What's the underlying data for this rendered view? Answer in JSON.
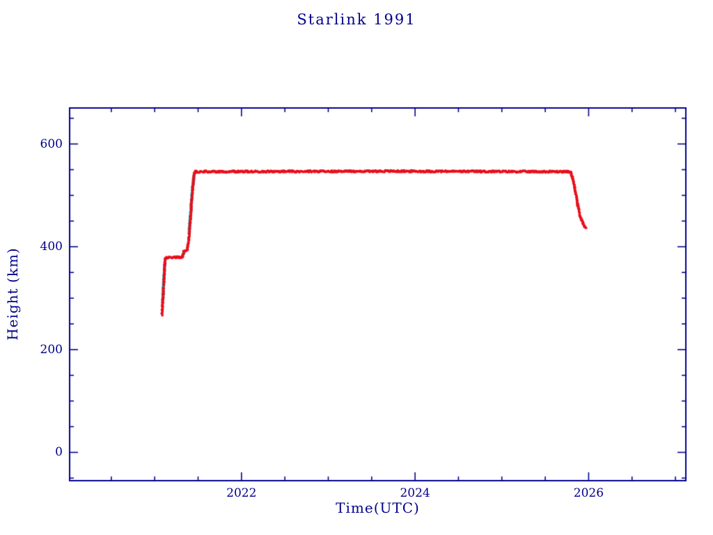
{
  "colors": {
    "axis": "#00008b",
    "text": "#00008b",
    "background": "#ffffff",
    "primary_series": "#e8101c",
    "secondary_series": "#00dde6"
  },
  "chart_data": {
    "type": "scatter",
    "title": "Starlink 1991",
    "xlabel": "Time(UTC)",
    "ylabel": "Height (km)",
    "xlim": [
      2020.02,
      2027.12
    ],
    "ylim": [
      -55,
      670
    ],
    "grid": false,
    "legend": "none",
    "x_major_ticks": [
      {
        "value": 2022,
        "label": "2022"
      },
      {
        "value": 2024,
        "label": "2024"
      },
      {
        "value": 2026,
        "label": "2026"
      }
    ],
    "x_minor_step": 0.5,
    "y_major_ticks": [
      {
        "value": 0,
        "label": "0"
      },
      {
        "value": 200,
        "label": "200"
      },
      {
        "value": 400,
        "label": "400"
      },
      {
        "value": 600,
        "label": "600"
      }
    ],
    "y_minor_step": 50,
    "series": [
      {
        "name": "height-secondary-cyan",
        "color": "#00dde6",
        "dot_radius": 2.0,
        "jitter_km": 2.5,
        "segments": [
          [
            [
              2021.092,
              295
            ],
            [
              2021.105,
              335
            ],
            [
              2021.118,
              368
            ]
          ],
          [
            [
              2021.328,
              383
            ],
            [
              2021.342,
              390
            ]
          ],
          [
            [
              2021.398,
              428
            ],
            [
              2021.42,
              478
            ],
            [
              2021.44,
              520
            ],
            [
              2021.456,
              540
            ]
          ]
        ]
      },
      {
        "name": "height-primary-red",
        "color": "#e8101c",
        "dot_radius": 1.8,
        "jitter_km": 1.8,
        "segments": [
          [
            [
              2021.084,
              268
            ],
            [
              2021.09,
              286
            ],
            [
              2021.098,
              308
            ],
            [
              2021.108,
              340
            ],
            [
              2021.116,
              366
            ],
            [
              2021.124,
              379
            ],
            [
              2021.32,
              380
            ],
            [
              2021.335,
              390
            ],
            [
              2021.375,
              394
            ],
            [
              2021.393,
              415
            ],
            [
              2021.41,
              452
            ],
            [
              2021.427,
              492
            ],
            [
              2021.443,
              524
            ],
            [
              2021.456,
              543
            ],
            [
              2021.47,
              546
            ],
            [
              2023.6,
              547
            ],
            [
              2025.79,
              546
            ],
            [
              2025.815,
              534
            ],
            [
              2025.845,
              510
            ],
            [
              2025.875,
              481
            ],
            [
              2025.905,
              459
            ],
            [
              2025.935,
              445
            ],
            [
              2025.955,
              439
            ],
            [
              2025.97,
              438
            ]
          ]
        ]
      }
    ]
  }
}
